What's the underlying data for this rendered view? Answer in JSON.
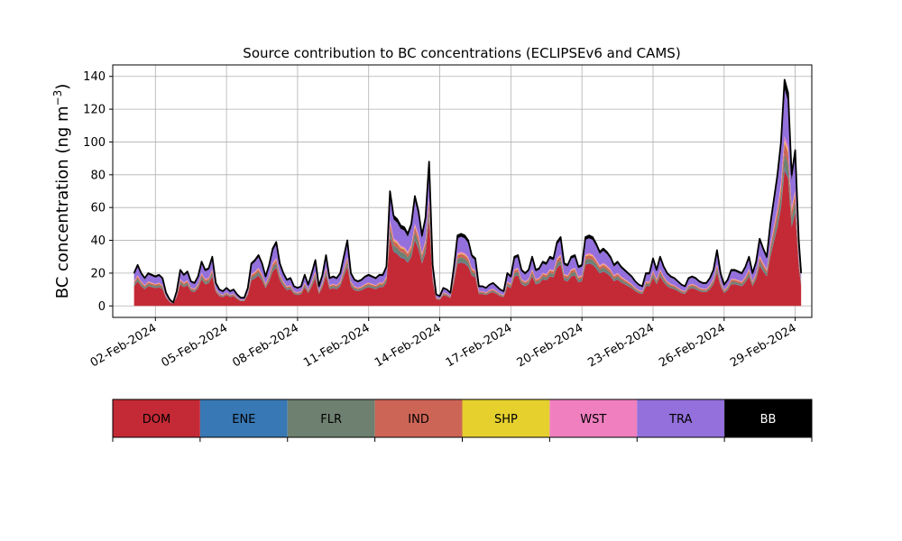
{
  "chart_data": {
    "type": "area",
    "title": "Source contribution to BC concentrations (ECLIPSEv6 and CAMS)",
    "ylabel": "BC concentration (ng m",
    "ylabel_sup": "−3",
    "ylabel_close": ")",
    "xlabel": "",
    "stacked": true,
    "grid": true,
    "x_unit": "days since 01-Feb-2024 00:00",
    "xlim": [
      -0.8,
      28.7
    ],
    "ylim": [
      -7,
      147
    ],
    "yticks": [
      0,
      20,
      40,
      60,
      80,
      100,
      120,
      140
    ],
    "xticks": [
      {
        "x": 1,
        "label": "02-Feb-2024"
      },
      {
        "x": 4,
        "label": "05-Feb-2024"
      },
      {
        "x": 7,
        "label": "08-Feb-2024"
      },
      {
        "x": 10,
        "label": "11-Feb-2024"
      },
      {
        "x": 13,
        "label": "14-Feb-2024"
      },
      {
        "x": 16,
        "label": "17-Feb-2024"
      },
      {
        "x": 19,
        "label": "20-Feb-2024"
      },
      {
        "x": 22,
        "label": "23-Feb-2024"
      },
      {
        "x": 25,
        "label": "26-Feb-2024"
      },
      {
        "x": 28,
        "label": "29-Feb-2024"
      }
    ],
    "total_points": [
      [
        0.1,
        20
      ],
      [
        0.25,
        25
      ],
      [
        0.4,
        20
      ],
      [
        0.55,
        17
      ],
      [
        0.7,
        20
      ],
      [
        0.85,
        19
      ],
      [
        1.0,
        18
      ],
      [
        1.15,
        19
      ],
      [
        1.3,
        17
      ],
      [
        1.45,
        8
      ],
      [
        1.6,
        4
      ],
      [
        1.75,
        2
      ],
      [
        1.9,
        9
      ],
      [
        2.05,
        22
      ],
      [
        2.2,
        19
      ],
      [
        2.35,
        21
      ],
      [
        2.5,
        15
      ],
      [
        2.65,
        14
      ],
      [
        2.8,
        18
      ],
      [
        2.95,
        27
      ],
      [
        3.1,
        22
      ],
      [
        3.25,
        23
      ],
      [
        3.4,
        30
      ],
      [
        3.55,
        14
      ],
      [
        3.7,
        10
      ],
      [
        3.85,
        9
      ],
      [
        4.0,
        11
      ],
      [
        4.15,
        9
      ],
      [
        4.3,
        10
      ],
      [
        4.45,
        7
      ],
      [
        4.6,
        5
      ],
      [
        4.75,
        5
      ],
      [
        4.9,
        11
      ],
      [
        5.05,
        26
      ],
      [
        5.2,
        28
      ],
      [
        5.35,
        31
      ],
      [
        5.5,
        26
      ],
      [
        5.65,
        18
      ],
      [
        5.8,
        25
      ],
      [
        5.95,
        35
      ],
      [
        6.1,
        39
      ],
      [
        6.25,
        26
      ],
      [
        6.4,
        20
      ],
      [
        6.55,
        16
      ],
      [
        6.7,
        17
      ],
      [
        6.85,
        12
      ],
      [
        7.0,
        11
      ],
      [
        7.15,
        12
      ],
      [
        7.3,
        19
      ],
      [
        7.45,
        13
      ],
      [
        7.6,
        20
      ],
      [
        7.75,
        28
      ],
      [
        7.9,
        12
      ],
      [
        8.05,
        19
      ],
      [
        8.2,
        31
      ],
      [
        8.35,
        17
      ],
      [
        8.5,
        18
      ],
      [
        8.65,
        17
      ],
      [
        8.8,
        20
      ],
      [
        8.95,
        30
      ],
      [
        9.1,
        40
      ],
      [
        9.25,
        20
      ],
      [
        9.4,
        16
      ],
      [
        9.55,
        15
      ],
      [
        9.7,
        16
      ],
      [
        9.85,
        18
      ],
      [
        10.0,
        19
      ],
      [
        10.15,
        18
      ],
      [
        10.3,
        17
      ],
      [
        10.45,
        19
      ],
      [
        10.6,
        19
      ],
      [
        10.75,
        24
      ],
      [
        10.9,
        70
      ],
      [
        11.05,
        55
      ],
      [
        11.2,
        53
      ],
      [
        11.35,
        49
      ],
      [
        11.5,
        48
      ],
      [
        11.65,
        44
      ],
      [
        11.8,
        50
      ],
      [
        11.95,
        67
      ],
      [
        12.1,
        58
      ],
      [
        12.25,
        43
      ],
      [
        12.4,
        54
      ],
      [
        12.55,
        88
      ],
      [
        12.7,
        25
      ],
      [
        12.85,
        7
      ],
      [
        13.0,
        6
      ],
      [
        13.15,
        11
      ],
      [
        13.3,
        10
      ],
      [
        13.45,
        8
      ],
      [
        13.6,
        24
      ],
      [
        13.75,
        43
      ],
      [
        13.9,
        44
      ],
      [
        14.05,
        43
      ],
      [
        14.2,
        40
      ],
      [
        14.35,
        31
      ],
      [
        14.5,
        29
      ],
      [
        14.65,
        12
      ],
      [
        14.8,
        12
      ],
      [
        14.95,
        11
      ],
      [
        15.1,
        13
      ],
      [
        15.25,
        14
      ],
      [
        15.4,
        12
      ],
      [
        15.55,
        10
      ],
      [
        15.7,
        9
      ],
      [
        15.85,
        20
      ],
      [
        16.0,
        18
      ],
      [
        16.15,
        30
      ],
      [
        16.3,
        31
      ],
      [
        16.45,
        22
      ],
      [
        16.6,
        20
      ],
      [
        16.75,
        22
      ],
      [
        16.9,
        30
      ],
      [
        17.05,
        22
      ],
      [
        17.2,
        23
      ],
      [
        17.35,
        27
      ],
      [
        17.5,
        26
      ],
      [
        17.65,
        30
      ],
      [
        17.8,
        29
      ],
      [
        17.95,
        39
      ],
      [
        18.1,
        42
      ],
      [
        18.25,
        26
      ],
      [
        18.4,
        25
      ],
      [
        18.55,
        30
      ],
      [
        18.7,
        31
      ],
      [
        18.85,
        24
      ],
      [
        19.0,
        25
      ],
      [
        19.15,
        42
      ],
      [
        19.3,
        43
      ],
      [
        19.45,
        42
      ],
      [
        19.6,
        38
      ],
      [
        19.75,
        33
      ],
      [
        19.9,
        35
      ],
      [
        20.05,
        33
      ],
      [
        20.2,
        30
      ],
      [
        20.35,
        25
      ],
      [
        20.5,
        27
      ],
      [
        20.65,
        24
      ],
      [
        20.8,
        22
      ],
      [
        20.95,
        20
      ],
      [
        21.1,
        18
      ],
      [
        21.25,
        15
      ],
      [
        21.4,
        13
      ],
      [
        21.55,
        12
      ],
      [
        21.7,
        20
      ],
      [
        21.85,
        20
      ],
      [
        22.0,
        29
      ],
      [
        22.15,
        22
      ],
      [
        22.3,
        30
      ],
      [
        22.45,
        24
      ],
      [
        22.6,
        20
      ],
      [
        22.75,
        18
      ],
      [
        22.9,
        17
      ],
      [
        23.05,
        15
      ],
      [
        23.2,
        13
      ],
      [
        23.35,
        12
      ],
      [
        23.5,
        17
      ],
      [
        23.65,
        18
      ],
      [
        23.8,
        17
      ],
      [
        23.95,
        15
      ],
      [
        24.1,
        14
      ],
      [
        24.25,
        14
      ],
      [
        24.4,
        17
      ],
      [
        24.55,
        22
      ],
      [
        24.7,
        34
      ],
      [
        24.85,
        20
      ],
      [
        25.0,
        13
      ],
      [
        25.15,
        16
      ],
      [
        25.3,
        22
      ],
      [
        25.45,
        22
      ],
      [
        25.6,
        21
      ],
      [
        25.75,
        20
      ],
      [
        25.9,
        24
      ],
      [
        26.05,
        30
      ],
      [
        26.2,
        20
      ],
      [
        26.35,
        27
      ],
      [
        26.5,
        41
      ],
      [
        26.65,
        35
      ],
      [
        26.8,
        30
      ],
      [
        26.95,
        50
      ],
      [
        27.1,
        65
      ],
      [
        27.25,
        80
      ],
      [
        27.4,
        100
      ],
      [
        27.55,
        138
      ],
      [
        27.7,
        130
      ],
      [
        27.85,
        80
      ],
      [
        28.0,
        95
      ],
      [
        28.15,
        40
      ],
      [
        28.25,
        20
      ]
    ],
    "series": [
      {
        "name": "DOM",
        "color": "#c42a36",
        "fraction": 0.6
      },
      {
        "name": "ENE",
        "color": "#3878b4",
        "fraction": 0.01
      },
      {
        "name": "FLR",
        "color": "#6e8070",
        "fraction": 0.06
      },
      {
        "name": "IND",
        "color": "#cd6556",
        "fraction": 0.05
      },
      {
        "name": "SHP",
        "color": "#e5d02e",
        "fraction": 0.01
      },
      {
        "name": "WST",
        "color": "#f07fbf",
        "fraction": 0.02
      },
      {
        "name": "TRA",
        "color": "#9370db",
        "fraction": 0.21
      },
      {
        "name": "BB",
        "color": "#000000",
        "fraction": 0.04
      }
    ],
    "legend": {
      "placement": "below",
      "items": [
        {
          "label": "DOM",
          "color": "#c42a36",
          "text_color": "#000000"
        },
        {
          "label": "ENE",
          "color": "#3878b4",
          "text_color": "#000000"
        },
        {
          "label": "FLR",
          "color": "#6e8070",
          "text_color": "#000000"
        },
        {
          "label": "IND",
          "color": "#cd6556",
          "text_color": "#000000"
        },
        {
          "label": "SHP",
          "color": "#e5d02e",
          "text_color": "#000000"
        },
        {
          "label": "WST",
          "color": "#f07fbf",
          "text_color": "#000000"
        },
        {
          "label": "TRA",
          "color": "#9370db",
          "text_color": "#000000"
        },
        {
          "label": "BB",
          "color": "#000000",
          "text_color": "#ffffff"
        }
      ]
    }
  }
}
